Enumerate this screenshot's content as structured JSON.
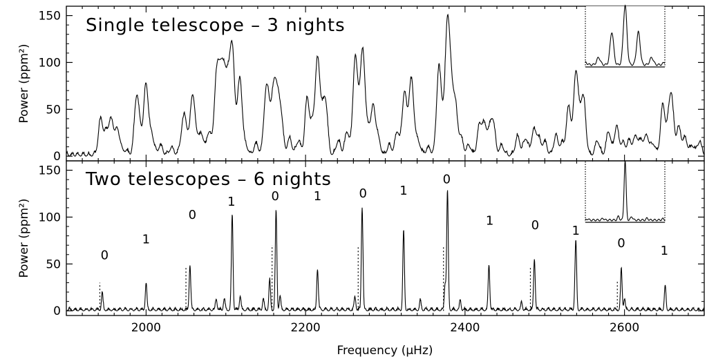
{
  "chart_data": {
    "type": "line",
    "shared_x": {
      "xlabel": "Frequency (μHz)",
      "xlim": [
        1900,
        2700
      ],
      "xticks": [
        2000,
        2200,
        2400,
        2600
      ]
    },
    "panels": [
      {
        "title": "Single telescope – 3 nights",
        "ylabel": "Power (ppm²)",
        "ylim": [
          -5,
          160
        ],
        "yticks": [
          0,
          50,
          100,
          150
        ],
        "peak_width_uHz": 2.8,
        "ripple_spacing_uHz": 11.6,
        "peaks": [
          [
            1943,
            38
          ],
          [
            1950,
            22
          ],
          [
            1956,
            35
          ],
          [
            1962,
            18
          ],
          [
            1966,
            16
          ],
          [
            1975,
            5
          ],
          [
            1988,
            60
          ],
          [
            1993,
            20
          ],
          [
            2000,
            75
          ],
          [
            2007,
            22
          ],
          [
            2018,
            10
          ],
          [
            2032,
            8
          ],
          [
            2045,
            18
          ],
          [
            2049,
            35
          ],
          [
            2058,
            63
          ],
          [
            2064,
            18
          ],
          [
            2070,
            20
          ],
          [
            2079,
            25
          ],
          [
            2088,
            75
          ],
          [
            2093,
            73
          ],
          [
            2098,
            73
          ],
          [
            2103,
            60
          ],
          [
            2108,
            106
          ],
          [
            2114,
            20
          ],
          [
            2118,
            73
          ],
          [
            2125,
            10
          ],
          [
            2138,
            12
          ],
          [
            2150,
            55
          ],
          [
            2154,
            40
          ],
          [
            2160,
            57
          ],
          [
            2164,
            48
          ],
          [
            2169,
            43
          ],
          [
            2180,
            18
          ],
          [
            2191,
            15
          ],
          [
            2202,
            60
          ],
          [
            2209,
            30
          ],
          [
            2215,
            95
          ],
          [
            2220,
            30
          ],
          [
            2225,
            55
          ],
          [
            2241,
            15
          ],
          [
            2252,
            25
          ],
          [
            2262,
            97
          ],
          [
            2267,
            35
          ],
          [
            2272,
            105
          ],
          [
            2279,
            25
          ],
          [
            2285,
            48
          ],
          [
            2291,
            18
          ],
          [
            2305,
            10
          ],
          [
            2315,
            25
          ],
          [
            2324,
            67
          ],
          [
            2332,
            72
          ],
          [
            2336,
            22
          ],
          [
            2342,
            12
          ],
          [
            2354,
            8
          ],
          [
            2367,
            88
          ],
          [
            2372,
            28
          ],
          [
            2378,
            136
          ],
          [
            2383,
            55
          ],
          [
            2388,
            47
          ],
          [
            2395,
            18
          ],
          [
            2405,
            10
          ],
          [
            2418,
            30
          ],
          [
            2424,
            30
          ],
          [
            2430,
            20
          ],
          [
            2435,
            35
          ],
          [
            2446,
            10
          ],
          [
            2466,
            20
          ],
          [
            2476,
            18
          ],
          [
            2486,
            25
          ],
          [
            2492,
            18
          ],
          [
            2500,
            14
          ],
          [
            2514,
            20
          ],
          [
            2522,
            12
          ],
          [
            2530,
            52
          ],
          [
            2539,
            88
          ],
          [
            2545,
            30
          ],
          [
            2549,
            50
          ],
          [
            2566,
            15
          ],
          [
            2580,
            25
          ],
          [
            2590,
            30
          ],
          [
            2598,
            12
          ],
          [
            2606,
            15
          ],
          [
            2614,
            20
          ],
          [
            2621,
            15
          ],
          [
            2628,
            20
          ],
          [
            2636,
            12
          ],
          [
            2648,
            53
          ],
          [
            2655,
            25
          ],
          [
            2659,
            57
          ],
          [
            2668,
            30
          ],
          [
            2676,
            18
          ],
          [
            2685,
            10
          ],
          [
            2694,
            14
          ]
        ],
        "noise_level": 4,
        "inset": {
          "type": "window_function",
          "central_peak": 1.0,
          "sidelobes": [
            [
              -12,
              0.55
            ],
            [
              12,
              0.55
            ],
            [
              -24,
              0.12
            ],
            [
              24,
              0.12
            ],
            [
              -36,
              0.04
            ],
            [
              36,
              0.04
            ]
          ]
        }
      },
      {
        "title": "Two telescopes – 6 nights",
        "ylabel": "Power (ppm²)",
        "ylim": [
          -5,
          160
        ],
        "yticks": [
          0,
          50,
          100,
          150
        ],
        "peak_width_uHz": 1.0,
        "peaks": [
          [
            1945,
            18
          ],
          [
            2000,
            29
          ],
          [
            2055,
            48
          ],
          [
            2108,
            102
          ],
          [
            2155,
            32
          ],
          [
            2163,
            105
          ],
          [
            2215,
            44
          ],
          [
            2271,
            110
          ],
          [
            2323,
            84
          ],
          [
            2375,
            28
          ],
          [
            2378,
            127
          ],
          [
            2430,
            48
          ],
          [
            2487,
            55
          ],
          [
            2539,
            67
          ],
          [
            2596,
            43
          ],
          [
            2651,
            26
          ],
          [
            2088,
            12
          ],
          [
            2098,
            12
          ],
          [
            2118,
            15
          ],
          [
            2147,
            12
          ],
          [
            2168,
            14
          ],
          [
            2262,
            14
          ],
          [
            2344,
            10
          ],
          [
            2394,
            10
          ],
          [
            2471,
            8
          ],
          [
            2538,
            10
          ],
          [
            2600,
            12
          ]
        ],
        "noise_level": 3,
        "mode_labels": [
          {
            "freq": 1948,
            "label": "0",
            "power": 55
          },
          {
            "freq": 2000,
            "label": "1",
            "power": 72
          },
          {
            "freq": 2058,
            "label": "0",
            "power": 98
          },
          {
            "freq": 2107,
            "label": "1",
            "power": 112
          },
          {
            "freq": 2162,
            "label": "0",
            "power": 118
          },
          {
            "freq": 2215,
            "label": "1",
            "power": 118
          },
          {
            "freq": 2272,
            "label": "0",
            "power": 121
          },
          {
            "freq": 2323,
            "label": "1",
            "power": 124
          },
          {
            "freq": 2377,
            "label": "0",
            "power": 136
          },
          {
            "freq": 2431,
            "label": "1",
            "power": 92
          },
          {
            "freq": 2488,
            "label": "0",
            "power": 87
          },
          {
            "freq": 2539,
            "label": "1",
            "power": 81
          },
          {
            "freq": 2596,
            "label": "0",
            "power": 68
          },
          {
            "freq": 2650,
            "label": "1",
            "power": 60
          }
        ],
        "dotted_markers": [
          {
            "freq": 1942,
            "power": 30
          },
          {
            "freq": 2050,
            "power": 47
          },
          {
            "freq": 2158,
            "power": 70
          },
          {
            "freq": 2266,
            "power": 69
          },
          {
            "freq": 2373,
            "power": 69
          },
          {
            "freq": 2482,
            "power": 47
          },
          {
            "freq": 2591,
            "power": 33
          }
        ],
        "inset": {
          "type": "window_function",
          "central_peak": 1.0,
          "sidelobes": [
            [
              -6,
              0.06
            ],
            [
              6,
              0.06
            ],
            [
              -20,
              0.03
            ],
            [
              20,
              0.03
            ],
            [
              -34,
              0.02
            ],
            [
              34,
              0.02
            ]
          ]
        }
      }
    ]
  }
}
